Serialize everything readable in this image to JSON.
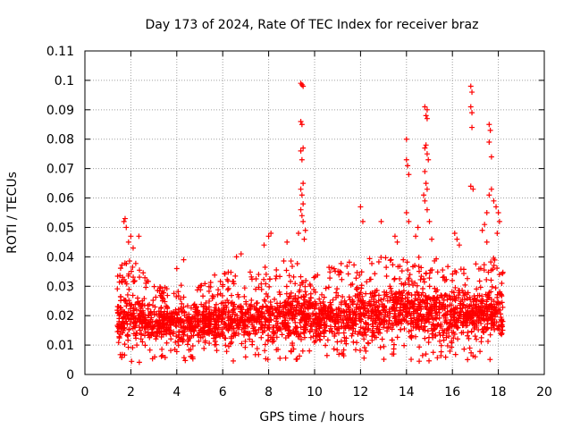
{
  "chart_data": {
    "type": "scatter",
    "title": "Day 173 of 2024, Rate Of TEC Index for receiver braz",
    "xlabel": "GPS time / hours",
    "ylabel": "ROTI / TECUs",
    "xlim": [
      0,
      20
    ],
    "ylim": [
      0,
      0.11
    ],
    "xticks": [
      0,
      2,
      4,
      6,
      8,
      10,
      12,
      14,
      16,
      18,
      20
    ],
    "yticks": [
      0,
      0.01,
      0.02,
      0.03,
      0.04,
      0.05,
      0.06,
      0.07,
      0.08,
      0.09,
      0.1,
      0.11
    ],
    "xtick_labels": [
      "0",
      "2",
      "4",
      "6",
      "8",
      "10",
      "12",
      "14",
      "16",
      "18",
      "20"
    ],
    "ytick_labels": [
      "0",
      "0.01",
      "0.02",
      "0.03",
      "0.04",
      "0.05",
      "0.06",
      "0.07",
      "0.08",
      "0.09",
      "0.1",
      "0.11"
    ],
    "grid": true,
    "marker": "+",
    "color": "#ff0000",
    "data_extent_hours": [
      1.4,
      18.2
    ],
    "band": {
      "hours": [
        1.4,
        2,
        3,
        4,
        5,
        6,
        7,
        8,
        9,
        10,
        11,
        12,
        13,
        14,
        15,
        16,
        17,
        18,
        18.2
      ],
      "low": [
        0.008,
        0.006,
        0.008,
        0.008,
        0.007,
        0.007,
        0.007,
        0.008,
        0.008,
        0.008,
        0.008,
        0.008,
        0.008,
        0.008,
        0.007,
        0.008,
        0.008,
        0.008,
        0.01
      ],
      "mid": [
        0.019,
        0.019,
        0.017,
        0.017,
        0.017,
        0.018,
        0.018,
        0.019,
        0.019,
        0.018,
        0.019,
        0.02,
        0.021,
        0.022,
        0.021,
        0.02,
        0.02,
        0.02,
        0.02
      ],
      "high": [
        0.036,
        0.04,
        0.03,
        0.03,
        0.032,
        0.035,
        0.035,
        0.038,
        0.04,
        0.035,
        0.038,
        0.04,
        0.04,
        0.04,
        0.04,
        0.038,
        0.038,
        0.04,
        0.036
      ]
    },
    "peaks": [
      {
        "x": 1.75,
        "y": 0.053
      },
      {
        "x": 1.7,
        "y": 0.052
      },
      {
        "x": 1.8,
        "y": 0.05
      },
      {
        "x": 2.0,
        "y": 0.047
      },
      {
        "x": 2.35,
        "y": 0.047
      },
      {
        "x": 1.9,
        "y": 0.045
      },
      {
        "x": 2.1,
        "y": 0.043
      },
      {
        "x": 4.0,
        "y": 0.036
      },
      {
        "x": 4.3,
        "y": 0.039
      },
      {
        "x": 6.6,
        "y": 0.04
      },
      {
        "x": 6.8,
        "y": 0.041
      },
      {
        "x": 7.8,
        "y": 0.044
      },
      {
        "x": 8.0,
        "y": 0.047
      },
      {
        "x": 8.1,
        "y": 0.048
      },
      {
        "x": 8.8,
        "y": 0.045
      },
      {
        "x": 9.4,
        "y": 0.099
      },
      {
        "x": 9.5,
        "y": 0.098
      },
      {
        "x": 9.45,
        "y": 0.0985
      },
      {
        "x": 9.4,
        "y": 0.086
      },
      {
        "x": 9.45,
        "y": 0.085
      },
      {
        "x": 9.5,
        "y": 0.077
      },
      {
        "x": 9.4,
        "y": 0.076
      },
      {
        "x": 9.45,
        "y": 0.073
      },
      {
        "x": 9.5,
        "y": 0.065
      },
      {
        "x": 9.4,
        "y": 0.063
      },
      {
        "x": 9.45,
        "y": 0.061
      },
      {
        "x": 9.5,
        "y": 0.058
      },
      {
        "x": 9.4,
        "y": 0.056
      },
      {
        "x": 9.45,
        "y": 0.054
      },
      {
        "x": 9.5,
        "y": 0.052
      },
      {
        "x": 9.6,
        "y": 0.049
      },
      {
        "x": 9.3,
        "y": 0.048
      },
      {
        "x": 9.55,
        "y": 0.046
      },
      {
        "x": 12.0,
        "y": 0.057
      },
      {
        "x": 12.1,
        "y": 0.052
      },
      {
        "x": 12.9,
        "y": 0.052
      },
      {
        "x": 13.5,
        "y": 0.047
      },
      {
        "x": 13.6,
        "y": 0.045
      },
      {
        "x": 14.0,
        "y": 0.08
      },
      {
        "x": 14.0,
        "y": 0.073
      },
      {
        "x": 14.05,
        "y": 0.071
      },
      {
        "x": 14.1,
        "y": 0.068
      },
      {
        "x": 14.0,
        "y": 0.055
      },
      {
        "x": 14.1,
        "y": 0.052
      },
      {
        "x": 14.5,
        "y": 0.05
      },
      {
        "x": 14.4,
        "y": 0.047
      },
      {
        "x": 14.8,
        "y": 0.091
      },
      {
        "x": 14.9,
        "y": 0.09
      },
      {
        "x": 14.85,
        "y": 0.088
      },
      {
        "x": 14.9,
        "y": 0.087
      },
      {
        "x": 14.85,
        "y": 0.078
      },
      {
        "x": 14.8,
        "y": 0.077
      },
      {
        "x": 14.9,
        "y": 0.075
      },
      {
        "x": 14.95,
        "y": 0.073
      },
      {
        "x": 14.8,
        "y": 0.069
      },
      {
        "x": 14.85,
        "y": 0.065
      },
      {
        "x": 14.9,
        "y": 0.063
      },
      {
        "x": 14.75,
        "y": 0.061
      },
      {
        "x": 14.8,
        "y": 0.059
      },
      {
        "x": 14.9,
        "y": 0.056
      },
      {
        "x": 15.0,
        "y": 0.052
      },
      {
        "x": 15.1,
        "y": 0.046
      },
      {
        "x": 16.1,
        "y": 0.048
      },
      {
        "x": 16.2,
        "y": 0.046
      },
      {
        "x": 16.3,
        "y": 0.044
      },
      {
        "x": 16.8,
        "y": 0.098
      },
      {
        "x": 16.85,
        "y": 0.096
      },
      {
        "x": 16.8,
        "y": 0.091
      },
      {
        "x": 16.85,
        "y": 0.089
      },
      {
        "x": 16.85,
        "y": 0.084
      },
      {
        "x": 16.9,
        "y": 0.063
      },
      {
        "x": 16.8,
        "y": 0.064
      },
      {
        "x": 17.6,
        "y": 0.085
      },
      {
        "x": 17.65,
        "y": 0.083
      },
      {
        "x": 17.6,
        "y": 0.079
      },
      {
        "x": 17.7,
        "y": 0.074
      },
      {
        "x": 17.7,
        "y": 0.063
      },
      {
        "x": 17.6,
        "y": 0.061
      },
      {
        "x": 17.8,
        "y": 0.059
      },
      {
        "x": 17.5,
        "y": 0.055
      },
      {
        "x": 17.4,
        "y": 0.051
      },
      {
        "x": 17.3,
        "y": 0.049
      },
      {
        "x": 17.9,
        "y": 0.057
      },
      {
        "x": 18.0,
        "y": 0.055
      },
      {
        "x": 18.05,
        "y": 0.052
      },
      {
        "x": 17.95,
        "y": 0.048
      },
      {
        "x": 17.5,
        "y": 0.045
      }
    ]
  }
}
